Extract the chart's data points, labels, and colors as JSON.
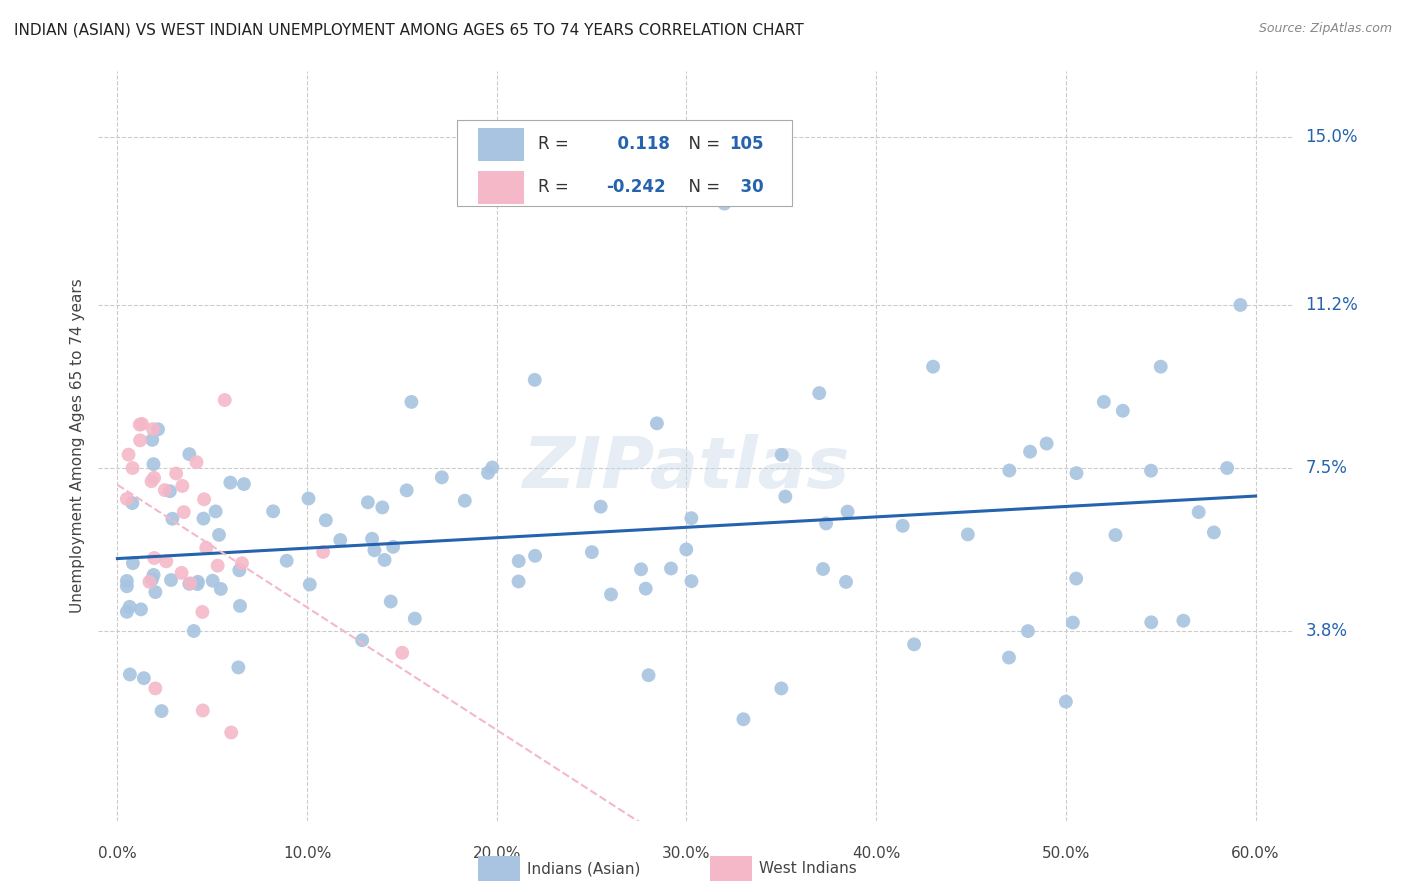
{
  "title": "INDIAN (ASIAN) VS WEST INDIAN UNEMPLOYMENT AMONG AGES 65 TO 74 YEARS CORRELATION CHART",
  "source": "Source: ZipAtlas.com",
  "ylabel": "Unemployment Among Ages 65 to 74 years",
  "xlabel_ticks": [
    "0.0%",
    "10.0%",
    "20.0%",
    "30.0%",
    "40.0%",
    "50.0%",
    "60.0%"
  ],
  "xlabel_vals": [
    0.0,
    10.0,
    20.0,
    30.0,
    40.0,
    50.0,
    60.0
  ],
  "ylabel_ticks": [
    3.8,
    7.5,
    11.2,
    15.0
  ],
  "ylabel_tick_labels": [
    "3.8%",
    "7.5%",
    "11.2%",
    "15.0%"
  ],
  "xlim": [
    0.0,
    60.0
  ],
  "ylim": [
    0.0,
    15.0
  ],
  "R_blue": 0.118,
  "N_blue": 105,
  "R_pink": -0.242,
  "N_pink": 30,
  "blue_color": "#a8c4e0",
  "blue_line_color": "#2563ae",
  "pink_color": "#f4b8c8",
  "pink_line_color": "#f4b8c8",
  "watermark": "ZIPatlas",
  "legend_label_blue": "Indians (Asian)",
  "legend_label_pink": "West Indians"
}
